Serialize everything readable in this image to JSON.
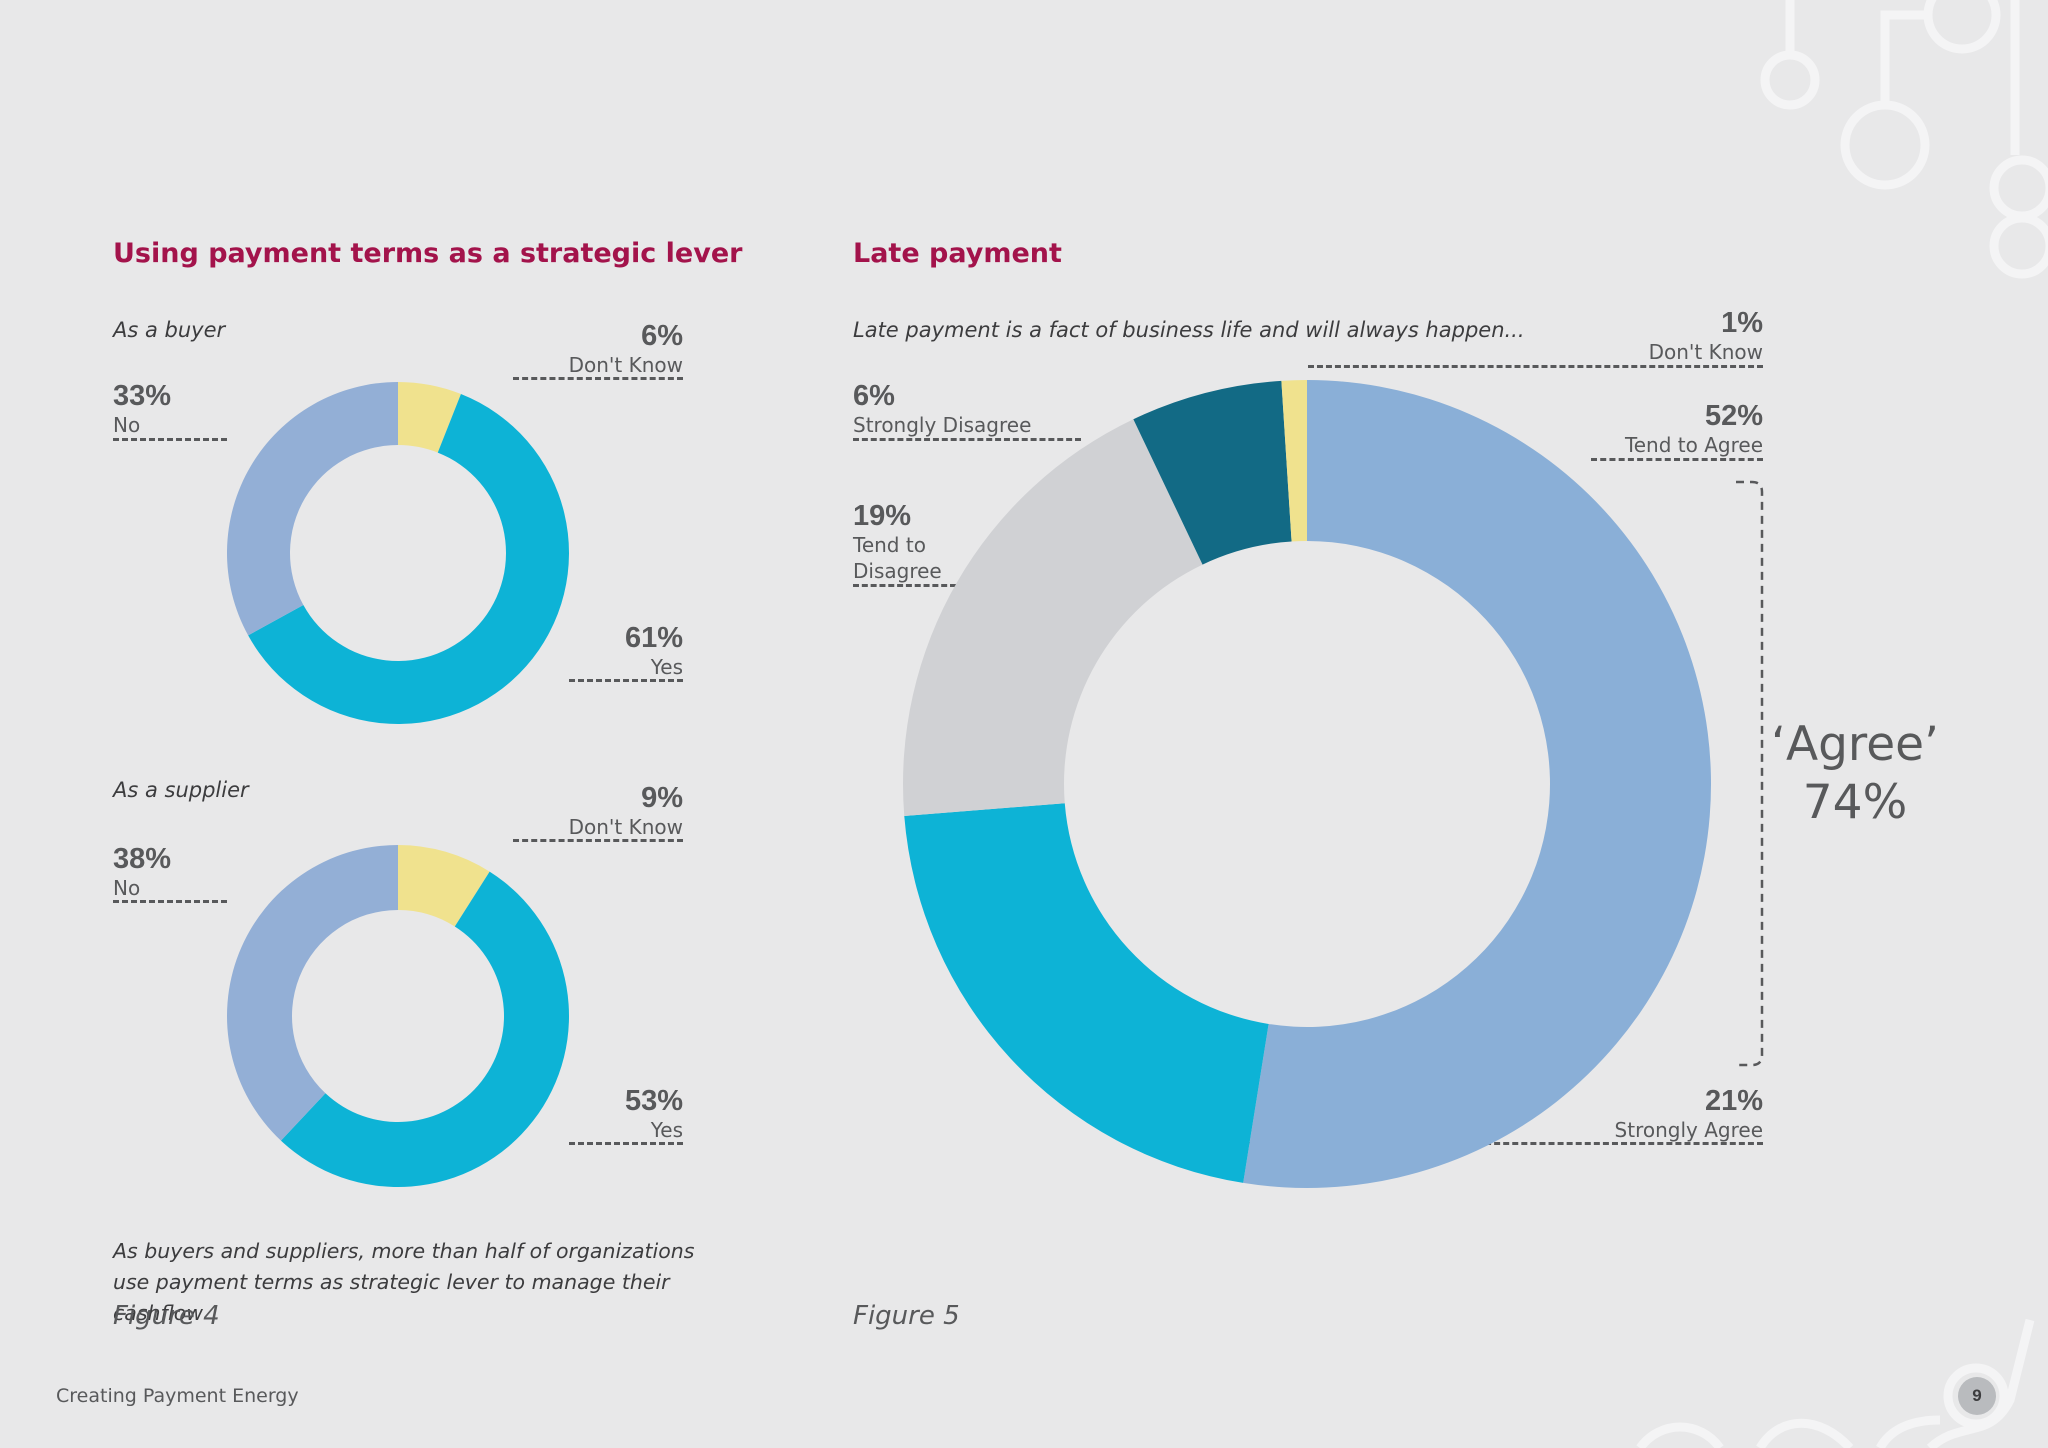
{
  "left": {
    "title": "Using payment terms as a strategic lever",
    "buyer": {
      "subtitle": "As a buyer",
      "labels": [
        {
          "pct": "6%",
          "name": "Don't Know"
        },
        {
          "pct": "33%",
          "name": "No"
        },
        {
          "pct": "61%",
          "name": "Yes"
        }
      ]
    },
    "supplier": {
      "subtitle": "As a supplier",
      "labels": [
        {
          "pct": "9%",
          "name": "Don't Know"
        },
        {
          "pct": "38%",
          "name": "No"
        },
        {
          "pct": "53%",
          "name": "Yes"
        }
      ]
    },
    "caption": "As buyers and suppliers, more than half of organizations use payment terms as strategic lever to manage their cashflow",
    "figure": "Figure 4"
  },
  "right": {
    "title": "Late payment",
    "subtitle": "Late payment is a fact of business life and will always happen...",
    "labels": [
      {
        "pct": "1%",
        "name": "Don't Know"
      },
      {
        "pct": "6%",
        "name": "Strongly Disagree"
      },
      {
        "pct": "52%",
        "name": "Tend to Agree"
      },
      {
        "pct": "19%",
        "name": "Tend to Disagree"
      },
      {
        "pct": "21%",
        "name": "Strongly Agree"
      }
    ],
    "agree_label": "‘Agree’",
    "agree_value": "74%",
    "figure": "Figure 5"
  },
  "footer": {
    "publication": "Creating Payment Energy",
    "page": "9"
  },
  "colors": {
    "dont_know": "#f0e28e",
    "yes": "#0db3d6",
    "no": "#93afd6",
    "tend_agree": "#8aafd7",
    "strongly_agree": "#0db3d6",
    "tend_disagree": "#d0d1d4",
    "strongly_disagree": "#126a85",
    "title": "#a3134b"
  },
  "chart_data": [
    {
      "type": "pie",
      "title": "As a buyer",
      "categories": [
        "Don't Know",
        "Yes",
        "No"
      ],
      "values": [
        6,
        61,
        33
      ],
      "colors": [
        "#f0e28e",
        "#0db3d6",
        "#93afd6"
      ]
    },
    {
      "type": "pie",
      "title": "As a supplier",
      "categories": [
        "Don't Know",
        "Yes",
        "No"
      ],
      "values": [
        9,
        53,
        38
      ],
      "colors": [
        "#f0e28e",
        "#0db3d6",
        "#93afd6"
      ]
    },
    {
      "type": "pie",
      "title": "Late payment is a fact of business life and will always happen...",
      "categories": [
        "Tend to Agree",
        "Strongly Agree",
        "Tend to Disagree",
        "Strongly Disagree",
        "Don't Know"
      ],
      "values": [
        52,
        21,
        19,
        6,
        1
      ],
      "colors": [
        "#8aafd7",
        "#0db3d6",
        "#d0d1d4",
        "#126a85",
        "#f0e28e"
      ]
    }
  ]
}
